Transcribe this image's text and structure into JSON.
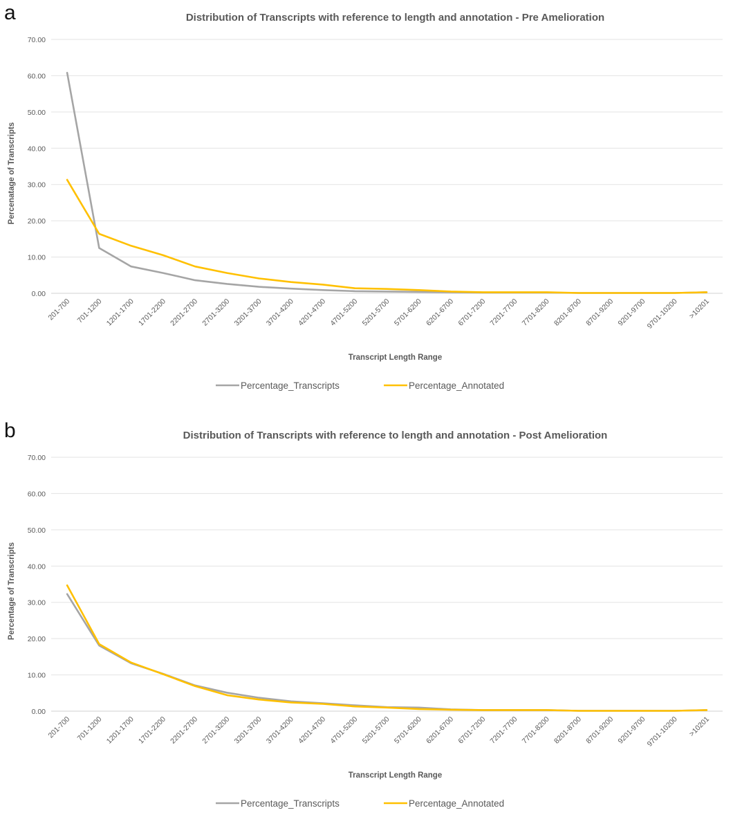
{
  "panels": [
    {
      "letter": "a"
    },
    {
      "letter": "b"
    }
  ],
  "chart_data": [
    {
      "type": "line",
      "title": "Distribution of Transcripts with reference to length and annotation - Pre Amelioration",
      "xlabel": "Transcript  Length Range",
      "ylabel": "Percenatage of Transcripts",
      "ylim": [
        0,
        70
      ],
      "yticks": [
        "0.00",
        "10.00",
        "20.00",
        "30.00",
        "40.00",
        "50.00",
        "60.00",
        "70.00"
      ],
      "grid": true,
      "legend_position": "bottom",
      "categories": [
        "201-700",
        "701-1200",
        "1201-1700",
        "1701-2200",
        "2201-2700",
        "2701-3200",
        "3201-3700",
        "3701-4200",
        "4201-4700",
        "4701-5200",
        "5201-5700",
        "5701-6200",
        "6201-6700",
        "6701-7200",
        "7201-7700",
        "7701-8200",
        "8201-8700",
        "8701-9200",
        "9201-9700",
        "9701-10200",
        ">10201"
      ],
      "series": [
        {
          "name": "Percentage_Transcripts",
          "color": "#a5a5a5",
          "values": [
            60.8,
            12.5,
            7.4,
            5.6,
            3.6,
            2.6,
            1.8,
            1.3,
            0.9,
            0.6,
            0.5,
            0.4,
            0.3,
            0.2,
            0.2,
            0.2,
            0.1,
            0.1,
            0.1,
            0.1,
            0.3
          ]
        },
        {
          "name": "Percentage_Annotated",
          "color": "#ffc000",
          "values": [
            31.3,
            16.4,
            13.1,
            10.5,
            7.4,
            5.6,
            4.1,
            3.1,
            2.4,
            1.4,
            1.2,
            0.9,
            0.5,
            0.3,
            0.3,
            0.3,
            0.1,
            0.1,
            0.1,
            0.1,
            0.3
          ]
        }
      ]
    },
    {
      "type": "line",
      "title": "Distribution of Transcripts with reference to length and annotation - Post Amelioration",
      "xlabel": "Transcript  Length Range",
      "ylabel": "Percentage of Transcripts",
      "ylim": [
        0,
        70
      ],
      "yticks": [
        "0.00",
        "10.00",
        "20.00",
        "30.00",
        "40.00",
        "50.00",
        "60.00",
        "70.00"
      ],
      "grid": true,
      "legend_position": "bottom",
      "categories": [
        "201-700",
        "701-1200",
        "1201-1700",
        "1701-2200",
        "2201-2700",
        "2701-3200",
        "3201-3700",
        "3701-4200",
        "4201-4700",
        "4701-5200",
        "5201-5700",
        "5701-6200",
        "6201-6700",
        "6701-7200",
        "7201-7700",
        "7701-8200",
        "8201-8700",
        "8701-9200",
        "9201-9700",
        "9701-10200",
        ">10201"
      ],
      "series": [
        {
          "name": "Percentage_Transcripts",
          "color": "#a5a5a5",
          "values": [
            32.3,
            18.1,
            13.2,
            10.3,
            7.1,
            5.1,
            3.7,
            2.7,
            2.2,
            1.6,
            1.1,
            1.0,
            0.5,
            0.3,
            0.3,
            0.3,
            0.1,
            0.1,
            0.1,
            0.1,
            0.3
          ]
        },
        {
          "name": "Percentage_Annotated",
          "color": "#ffc000",
          "values": [
            34.7,
            18.5,
            13.4,
            10.2,
            6.9,
            4.4,
            3.2,
            2.4,
            2.0,
            1.3,
            1.0,
            0.6,
            0.4,
            0.3,
            0.3,
            0.3,
            0.1,
            0.1,
            0.1,
            0.1,
            0.3
          ]
        }
      ]
    }
  ]
}
